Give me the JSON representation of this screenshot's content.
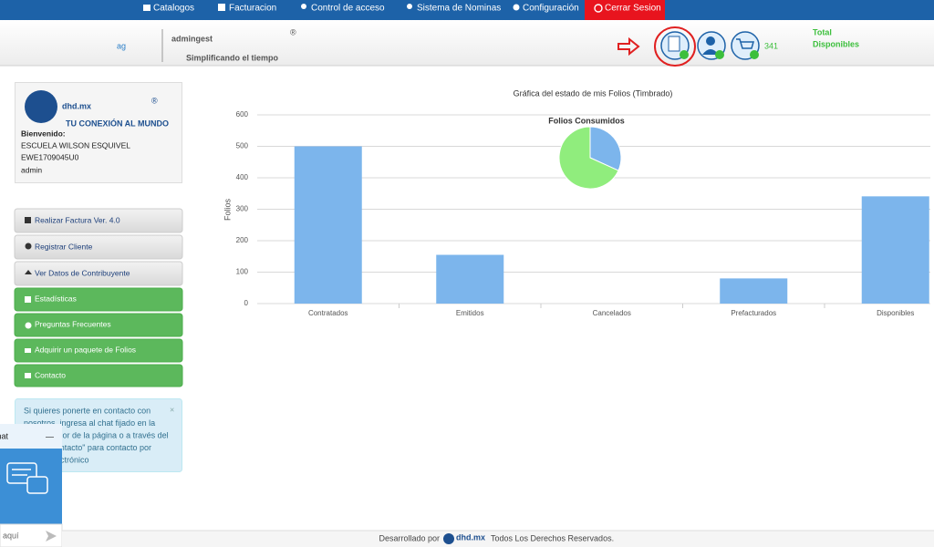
{
  "nav": {
    "items": [
      "Catalogos",
      "Facturacion",
      "Control de acceso",
      "Sistema de Nominas",
      "Configuración",
      "Cerrar Sesion"
    ]
  },
  "header": {
    "logo_mark": "ag",
    "brand": "admingest",
    "registered": "®",
    "tagline": "Simplificando el tiempo",
    "available_count": "341",
    "available_label_1": "Total",
    "available_label_2": "Disponibles"
  },
  "sidebar": {
    "logo": "dhd.mx",
    "logo_sup": "®",
    "logo_tagline": "TU CONEXIÓN AL MUNDO",
    "welcome": "Bienvenido:",
    "school": "ESCUELA WILSON ESQUIVEL",
    "rfc": "EWE1709045U0",
    "user": "admin",
    "menu": [
      "Realizar Factura Ver. 4.0",
      "Registrar Cliente",
      "Ver Datos de Contribuyente",
      "Estadísticas",
      "Preguntas Frecuentes",
      "Adquirir un paquete de Folios",
      "Contacto"
    ],
    "info": [
      "Si quieres ponerte en contacto con",
      "nosotros, ingresa al chat fijado en la",
      "parte inferior de la página o a través del",
      "botón \"Contacto\" para contacto por",
      "correo electrónico"
    ],
    "close": "×"
  },
  "chat": {
    "title": "Chat",
    "minimize": "—",
    "input": "aquí"
  },
  "footer": {
    "prefix": "Desarrollado por",
    "brand": "dhd.mx",
    "suffix": "Todos Los Derechos Reservados."
  },
  "chart_data": [
    {
      "type": "bar",
      "title": "Gráfica del estado de mis Folios (Timbrado)",
      "y_label": "Folios",
      "categories": [
        "Contratados",
        "Emitidos",
        "Cancelados",
        "Prefacturados",
        "Disponibles"
      ],
      "values": [
        500,
        155,
        0,
        80,
        341
      ],
      "color": "#7cb5ec",
      "ylim": [
        0,
        600
      ],
      "yticks": [
        0,
        100,
        200,
        300,
        400,
        500,
        600
      ],
      "grid": true
    },
    {
      "type": "pie",
      "title": "Folios Consumidos",
      "categories": [
        null,
        null
      ],
      "values": [
        159,
        341
      ],
      "colors": [
        "#7cb5ec",
        "#90ed7d"
      ]
    }
  ]
}
